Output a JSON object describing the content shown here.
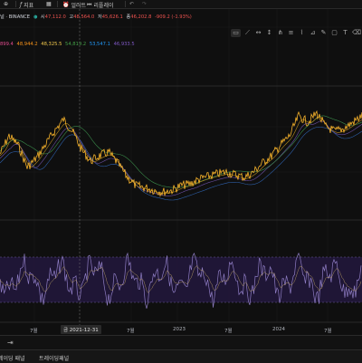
{
  "toolbar": {
    "indicators_label": "지표",
    "alerts_label": "얼러트",
    "replay_label": "리플레이"
  },
  "legend": {
    "symbol": "널 · BINANCE",
    "open_label": "시",
    "open": "47,112.0",
    "high_label": "고",
    "high": "48,564.0",
    "low_label": "저",
    "low": "45,626.1",
    "close_label": "종",
    "close": "46,202.8",
    "change": "-909.2 (-1.93%)",
    "ma_values": [
      {
        "value": "899.4",
        "color": "#e04b8e"
      },
      {
        "value": "48,944.2",
        "color": "#f7931a"
      },
      {
        "value": "48,325.5",
        "color": "#f2c94c"
      },
      {
        "value": "54,819.2",
        "color": "#43a047"
      },
      {
        "value": "53,547.1",
        "color": "#2196f3"
      },
      {
        "value": "46,933.5",
        "color": "#7e57c2"
      }
    ]
  },
  "xaxis": {
    "labels": [
      {
        "text": "7월"
      },
      {
        "text": "7월"
      },
      {
        "text": "2023"
      },
      {
        "text": "7월"
      },
      {
        "text": "2024"
      },
      {
        "text": "7월"
      }
    ],
    "crosshair_date": "금 2021-12-31"
  },
  "panel": {
    "tab1": "레이딩 패널",
    "tab2": "트레이딩패널"
  },
  "colors": {
    "price": "#f7b32b",
    "rsi": "#8e7cc3",
    "rsi_band": "#2b1f4a"
  }
}
